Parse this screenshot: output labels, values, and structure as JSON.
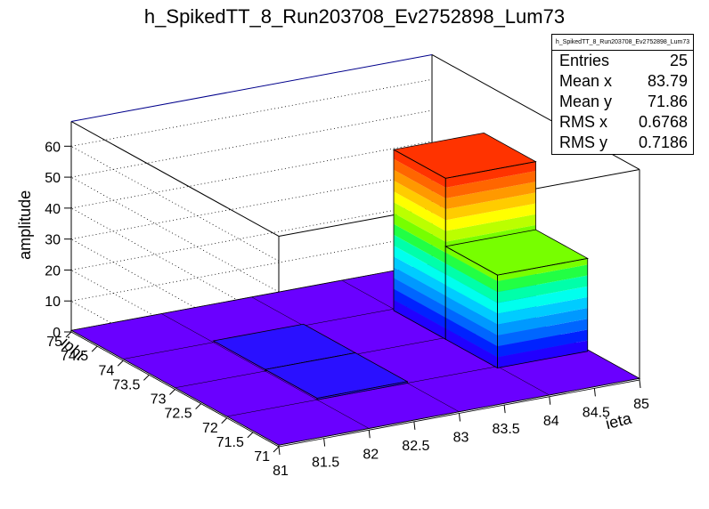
{
  "title": "h_SpikedTT_8_Run203708_Ev2752898_Lum73",
  "stats": {
    "title": "h_SpikedTT_8_Run203708_Ev2752898_Lum73",
    "rows": [
      {
        "label": "Entries",
        "value": "25"
      },
      {
        "label": "Mean x",
        "value": "83.79"
      },
      {
        "label": "Mean y",
        "value": "71.86"
      },
      {
        "label": "RMS x",
        "value": "0.6768"
      },
      {
        "label": "RMS y",
        "value": "0.7186"
      }
    ]
  },
  "chart_data": {
    "type": "lego",
    "xlabel": "ieta",
    "ylabel": "iphi",
    "zlabel": "amplitude",
    "x_ticks": [
      "81",
      "81.5",
      "82",
      "82.5",
      "83",
      "83.5",
      "84",
      "84.5",
      "85"
    ],
    "y_ticks": [
      "71",
      "71.5",
      "72",
      "72.5",
      "73",
      "73.5",
      "74",
      "74.5",
      "75"
    ],
    "z_ticks": [
      "0",
      "10",
      "20",
      "30",
      "40",
      "50",
      "60"
    ],
    "xlim": [
      81,
      85
    ],
    "ylim": [
      71,
      75
    ],
    "zlim": [
      0,
      68
    ],
    "x_bins": [
      81,
      82,
      83,
      84,
      85
    ],
    "y_bins": [
      71,
      72,
      73,
      74,
      75
    ],
    "bins": [
      {
        "x": 84,
        "y": 72,
        "z": 30
      },
      {
        "x": 84,
        "y": 73,
        "z": 52
      },
      {
        "x": 82,
        "y": 72,
        "z": 0.5
      },
      {
        "x": 82,
        "y": 73,
        "z": 0.5
      }
    ],
    "colors": {
      "palette": [
        "#2200ff",
        "#0022ff",
        "#0066ff",
        "#0099ff",
        "#00ccff",
        "#00ffee",
        "#00ffaa",
        "#22ff44",
        "#77ff00",
        "#bbff00",
        "#ffff00",
        "#ffcc00",
        "#ff9900",
        "#ff6600",
        "#ff3300",
        "#ff0000"
      ],
      "base": "#6a00ff",
      "low": "#2a10ff"
    }
  }
}
